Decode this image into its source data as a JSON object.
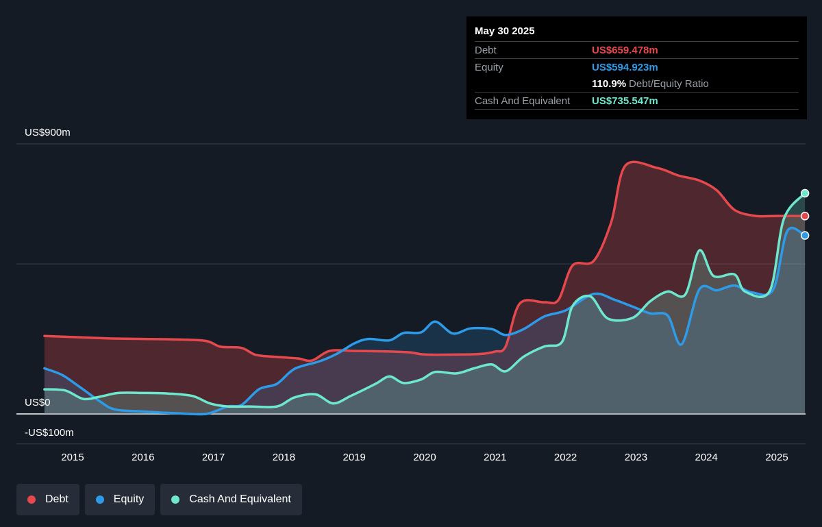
{
  "tooltip": {
    "date": "May 30 2025",
    "debt_label": "Debt",
    "debt_value": "US$659.478m",
    "equity_label": "Equity",
    "equity_value": "US$594.923m",
    "ratio_value": "110.9%",
    "ratio_label": "Debt/Equity Ratio",
    "cash_label": "Cash And Equivalent",
    "cash_value": "US$735.547m"
  },
  "legend": [
    {
      "label": "Debt",
      "color": "#e5484d"
    },
    {
      "label": "Equity",
      "color": "#2d9be8"
    },
    {
      "label": "Cash And Equivalent",
      "color": "#6ee7cf"
    }
  ],
  "chart_data": {
    "type": "area",
    "y_tick_labels": [
      "US$900m",
      "US$0",
      "-US$100m"
    ],
    "ylim": [
      -100,
      900
    ],
    "x_tick_labels": [
      "2015",
      "2016",
      "2017",
      "2018",
      "2019",
      "2020",
      "2021",
      "2022",
      "2023",
      "2024",
      "2025"
    ],
    "x_tick_years": [
      2015,
      2016,
      2017,
      2018,
      2019,
      2020,
      2021,
      2022,
      2023,
      2024,
      2025
    ],
    "xlim": [
      2014.25,
      2025.4
    ],
    "grid_values": [
      900,
      500,
      0,
      -100
    ],
    "colors": {
      "debt": "#e5484d",
      "equity": "#2d9be8",
      "cash": "#6ee7cf"
    },
    "series": [
      {
        "name": "Debt",
        "key": "debt",
        "points": [
          [
            2014.6,
            260
          ],
          [
            2015.5,
            252
          ],
          [
            2016.0,
            250
          ],
          [
            2016.5,
            248
          ],
          [
            2016.9,
            243
          ],
          [
            2017.1,
            224
          ],
          [
            2017.4,
            220
          ],
          [
            2017.6,
            197
          ],
          [
            2017.9,
            190
          ],
          [
            2018.2,
            185
          ],
          [
            2018.4,
            178
          ],
          [
            2018.65,
            210
          ],
          [
            2019.0,
            210
          ],
          [
            2019.5,
            208
          ],
          [
            2019.8,
            205
          ],
          [
            2020.0,
            198
          ],
          [
            2020.5,
            198
          ],
          [
            2020.8,
            200
          ],
          [
            2021.0,
            208
          ],
          [
            2021.15,
            225
          ],
          [
            2021.35,
            368
          ],
          [
            2021.7,
            372
          ],
          [
            2021.9,
            380
          ],
          [
            2022.1,
            495
          ],
          [
            2022.4,
            510
          ],
          [
            2022.65,
            640
          ],
          [
            2022.85,
            828
          ],
          [
            2023.3,
            820
          ],
          [
            2023.6,
            795
          ],
          [
            2023.9,
            778
          ],
          [
            2024.15,
            745
          ],
          [
            2024.4,
            680
          ],
          [
            2024.7,
            660
          ],
          [
            2025.0,
            660
          ],
          [
            2025.4,
            659.478
          ]
        ]
      },
      {
        "name": "Equity",
        "key": "equity",
        "points": [
          [
            2014.6,
            152
          ],
          [
            2014.85,
            130
          ],
          [
            2015.1,
            90
          ],
          [
            2015.4,
            40
          ],
          [
            2015.6,
            15
          ],
          [
            2016.0,
            8
          ],
          [
            2016.5,
            2
          ],
          [
            2016.9,
            0
          ],
          [
            2017.2,
            25
          ],
          [
            2017.4,
            30
          ],
          [
            2017.65,
            83
          ],
          [
            2017.9,
            100
          ],
          [
            2018.15,
            150
          ],
          [
            2018.5,
            175
          ],
          [
            2018.75,
            200
          ],
          [
            2019.0,
            235
          ],
          [
            2019.2,
            250
          ],
          [
            2019.5,
            245
          ],
          [
            2019.7,
            270
          ],
          [
            2019.95,
            272
          ],
          [
            2020.15,
            308
          ],
          [
            2020.4,
            268
          ],
          [
            2020.65,
            285
          ],
          [
            2020.95,
            283
          ],
          [
            2021.15,
            263
          ],
          [
            2021.4,
            282
          ],
          [
            2021.7,
            325
          ],
          [
            2022.0,
            345
          ],
          [
            2022.4,
            400
          ],
          [
            2022.7,
            380
          ],
          [
            2022.95,
            358
          ],
          [
            2023.2,
            335
          ],
          [
            2023.45,
            328
          ],
          [
            2023.65,
            232
          ],
          [
            2023.9,
            415
          ],
          [
            2024.15,
            412
          ],
          [
            2024.4,
            428
          ],
          [
            2024.65,
            405
          ],
          [
            2024.95,
            415
          ],
          [
            2025.15,
            610
          ],
          [
            2025.4,
            594.923
          ]
        ]
      },
      {
        "name": "Cash And Equivalent",
        "key": "cash",
        "points": [
          [
            2014.6,
            82
          ],
          [
            2014.9,
            78
          ],
          [
            2015.15,
            50
          ],
          [
            2015.4,
            58
          ],
          [
            2015.65,
            70
          ],
          [
            2016.0,
            70
          ],
          [
            2016.35,
            68
          ],
          [
            2016.7,
            60
          ],
          [
            2016.95,
            35
          ],
          [
            2017.2,
            25
          ],
          [
            2017.5,
            25
          ],
          [
            2017.9,
            25
          ],
          [
            2018.15,
            55
          ],
          [
            2018.45,
            65
          ],
          [
            2018.7,
            35
          ],
          [
            2018.95,
            60
          ],
          [
            2019.3,
            100
          ],
          [
            2019.5,
            125
          ],
          [
            2019.7,
            103
          ],
          [
            2019.95,
            115
          ],
          [
            2020.15,
            140
          ],
          [
            2020.45,
            135
          ],
          [
            2020.7,
            152
          ],
          [
            2020.95,
            165
          ],
          [
            2021.15,
            142
          ],
          [
            2021.4,
            190
          ],
          [
            2021.7,
            225
          ],
          [
            2021.95,
            240
          ],
          [
            2022.1,
            360
          ],
          [
            2022.35,
            392
          ],
          [
            2022.6,
            318
          ],
          [
            2022.95,
            320
          ],
          [
            2023.2,
            375
          ],
          [
            2023.45,
            408
          ],
          [
            2023.7,
            398
          ],
          [
            2023.9,
            545
          ],
          [
            2024.1,
            460
          ],
          [
            2024.4,
            465
          ],
          [
            2024.55,
            408
          ],
          [
            2024.9,
            410
          ],
          [
            2025.1,
            650
          ],
          [
            2025.4,
            735.547
          ]
        ]
      }
    ]
  }
}
